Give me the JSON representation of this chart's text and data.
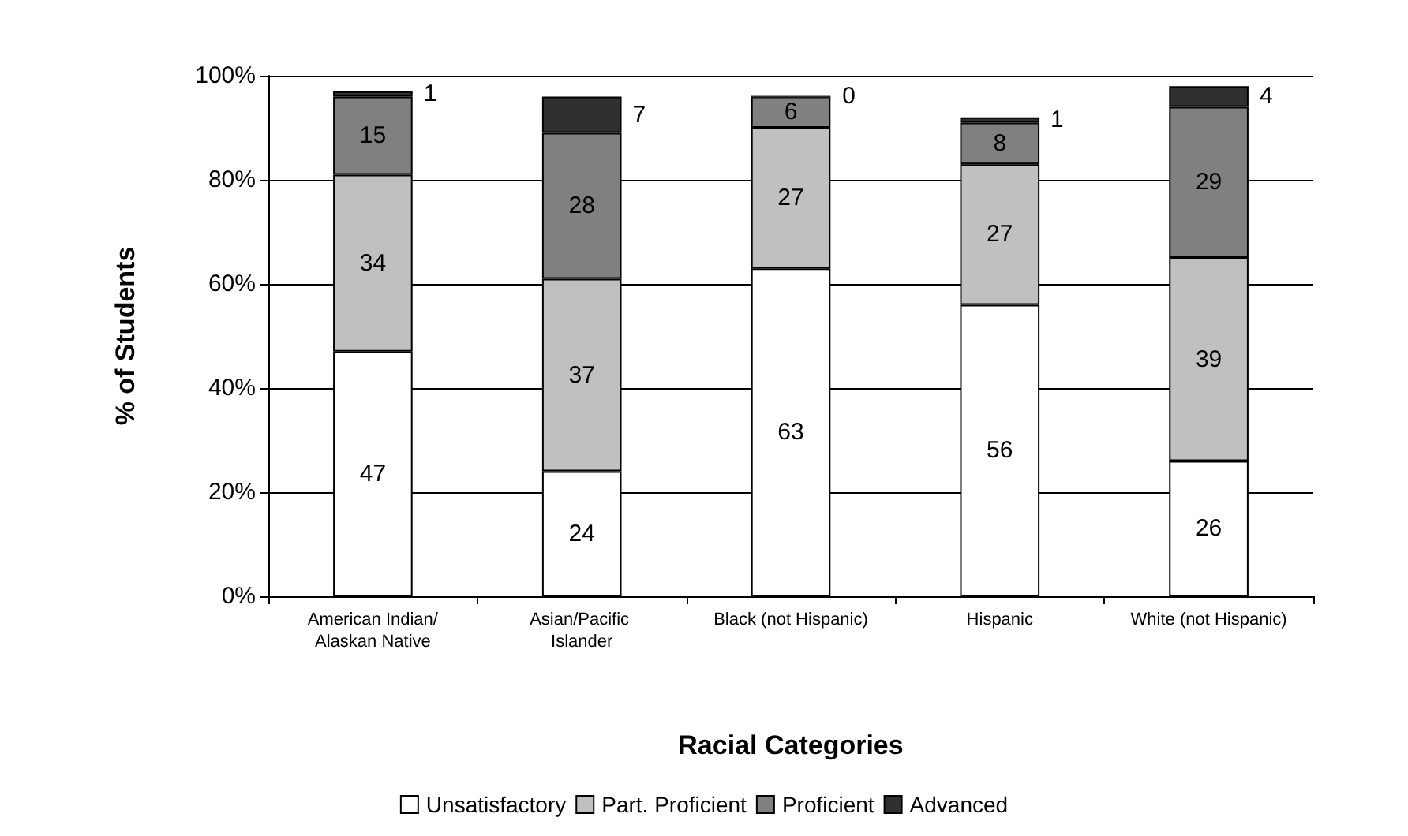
{
  "chart_data": {
    "type": "bar",
    "stacked": true,
    "xlabel": "Racial Categories",
    "ylabel": "% of Students",
    "categories": [
      "American Indian/Alaskan Native",
      "Asian/Pacific Islander",
      "Black (not Hispanic)",
      "Hispanic",
      "White (not Hispanic)"
    ],
    "series": [
      {
        "name": "Unsatisfactory",
        "color": "#ffffff",
        "values": [
          47,
          24,
          63,
          56,
          26
        ]
      },
      {
        "name": "Part. Proficient",
        "color": "#c0c0c0",
        "values": [
          34,
          37,
          27,
          27,
          39
        ]
      },
      {
        "name": "Proficient",
        "color": "#808080",
        "values": [
          15,
          28,
          6,
          8,
          29
        ]
      },
      {
        "name": "Advanced",
        "color": "#303030",
        "values": [
          1,
          7,
          0,
          1,
          4
        ]
      }
    ],
    "ylim": [
      0,
      100
    ],
    "yticks": [
      {
        "value": 0,
        "label": "0%"
      },
      {
        "value": 20,
        "label": "20%"
      },
      {
        "value": 40,
        "label": "40%"
      },
      {
        "value": 60,
        "label": "60%"
      },
      {
        "value": 80,
        "label": "80%"
      },
      {
        "value": 100,
        "label": "100%"
      }
    ],
    "grid": "y",
    "legend": "bottom",
    "data_labels": true
  }
}
